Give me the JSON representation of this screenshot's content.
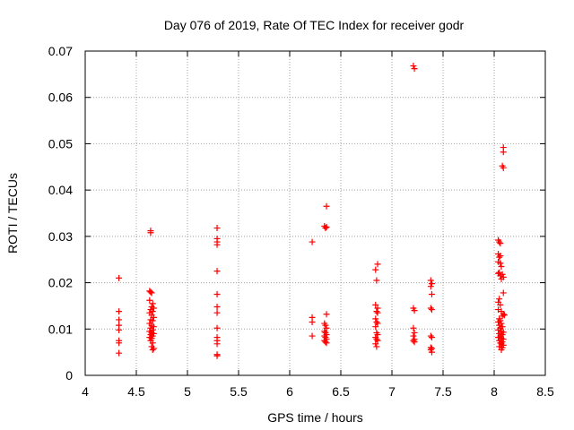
{
  "chart_data": {
    "type": "scatter",
    "title": "Day 076 of 2019, Rate Of TEC Index for receiver godr",
    "xlabel": "GPS time / hours",
    "ylabel": "ROTI / TECUs",
    "xlim": [
      4,
      8.5
    ],
    "ylim": [
      0,
      0.07
    ],
    "xticks": [
      "4",
      "4.5",
      "5",
      "5.5",
      "6",
      "6.5",
      "7",
      "7.5",
      "8",
      "8.5"
    ],
    "yticks": [
      "0",
      "0.01",
      "0.02",
      "0.03",
      "0.04",
      "0.05",
      "0.06",
      "0.07"
    ],
    "grid": true,
    "marker": "+",
    "color": "#ff0000",
    "series": [
      {
        "name": "ROTI",
        "points": [
          [
            4.33,
            0.021
          ],
          [
            4.33,
            0.0138
          ],
          [
            4.33,
            0.012
          ],
          [
            4.33,
            0.0108
          ],
          [
            4.33,
            0.0098
          ],
          [
            4.33,
            0.0075
          ],
          [
            4.33,
            0.007
          ],
          [
            4.33,
            0.0048
          ],
          [
            4.64,
            0.0312
          ],
          [
            4.64,
            0.0308
          ],
          [
            4.63,
            0.0182
          ],
          [
            4.64,
            0.018
          ],
          [
            4.65,
            0.0178
          ],
          [
            4.63,
            0.0162
          ],
          [
            4.66,
            0.0155
          ],
          [
            4.65,
            0.0148
          ],
          [
            4.67,
            0.0145
          ],
          [
            4.64,
            0.0142
          ],
          [
            4.66,
            0.0138
          ],
          [
            4.63,
            0.0135
          ],
          [
            4.65,
            0.013
          ],
          [
            4.67,
            0.0125
          ],
          [
            4.64,
            0.012
          ],
          [
            4.66,
            0.0118
          ],
          [
            4.63,
            0.0112
          ],
          [
            4.65,
            0.0108
          ],
          [
            4.67,
            0.0105
          ],
          [
            4.64,
            0.0102
          ],
          [
            4.66,
            0.0098
          ],
          [
            4.63,
            0.0095
          ],
          [
            4.65,
            0.0092
          ],
          [
            4.67,
            0.009
          ],
          [
            4.64,
            0.0088
          ],
          [
            4.66,
            0.0085
          ],
          [
            4.63,
            0.0082
          ],
          [
            4.65,
            0.008
          ],
          [
            4.64,
            0.0075
          ],
          [
            4.66,
            0.007
          ],
          [
            4.65,
            0.0062
          ],
          [
            4.67,
            0.0058
          ],
          [
            4.66,
            0.0055
          ],
          [
            5.29,
            0.0318
          ],
          [
            5.29,
            0.0295
          ],
          [
            5.29,
            0.0288
          ],
          [
            5.29,
            0.0282
          ],
          [
            5.29,
            0.0225
          ],
          [
            5.29,
            0.0175
          ],
          [
            5.29,
            0.0148
          ],
          [
            5.29,
            0.0135
          ],
          [
            5.29,
            0.0102
          ],
          [
            5.29,
            0.0082
          ],
          [
            5.29,
            0.0075
          ],
          [
            5.29,
            0.0068
          ],
          [
            5.29,
            0.0045
          ],
          [
            5.29,
            0.0042
          ],
          [
            6.22,
            0.0288
          ],
          [
            6.22,
            0.0125
          ],
          [
            6.22,
            0.0115
          ],
          [
            6.22,
            0.0085
          ],
          [
            6.36,
            0.0365
          ],
          [
            6.34,
            0.0322
          ],
          [
            6.35,
            0.0318
          ],
          [
            6.36,
            0.032
          ],
          [
            6.36,
            0.0132
          ],
          [
            6.34,
            0.0112
          ],
          [
            6.35,
            0.0108
          ],
          [
            6.36,
            0.0102
          ],
          [
            6.34,
            0.0095
          ],
          [
            6.35,
            0.0092
          ],
          [
            6.36,
            0.0088
          ],
          [
            6.34,
            0.0085
          ],
          [
            6.35,
            0.0082
          ],
          [
            6.36,
            0.0078
          ],
          [
            6.34,
            0.0075
          ],
          [
            6.35,
            0.0072
          ],
          [
            6.36,
            0.007
          ],
          [
            6.86,
            0.024
          ],
          [
            6.84,
            0.0228
          ],
          [
            6.85,
            0.0205
          ],
          [
            6.84,
            0.0152
          ],
          [
            6.86,
            0.0145
          ],
          [
            6.85,
            0.0138
          ],
          [
            6.86,
            0.0135
          ],
          [
            6.84,
            0.0122
          ],
          [
            6.85,
            0.0115
          ],
          [
            6.86,
            0.0112
          ],
          [
            6.84,
            0.0105
          ],
          [
            6.85,
            0.0092
          ],
          [
            6.86,
            0.0088
          ],
          [
            6.84,
            0.0082
          ],
          [
            6.85,
            0.0078
          ],
          [
            6.86,
            0.0075
          ],
          [
            6.84,
            0.0068
          ],
          [
            6.85,
            0.0062
          ],
          [
            7.21,
            0.0668
          ],
          [
            7.22,
            0.0662
          ],
          [
            7.21,
            0.0145
          ],
          [
            7.22,
            0.014
          ],
          [
            7.21,
            0.0102
          ],
          [
            7.22,
            0.0092
          ],
          [
            7.21,
            0.0085
          ],
          [
            7.22,
            0.0078
          ],
          [
            7.21,
            0.0075
          ],
          [
            7.22,
            0.0072
          ],
          [
            7.38,
            0.0205
          ],
          [
            7.39,
            0.0198
          ],
          [
            7.38,
            0.0192
          ],
          [
            7.39,
            0.0175
          ],
          [
            7.38,
            0.0145
          ],
          [
            7.39,
            0.0142
          ],
          [
            7.38,
            0.0085
          ],
          [
            7.39,
            0.0082
          ],
          [
            7.38,
            0.006
          ],
          [
            7.39,
            0.0058
          ],
          [
            7.38,
            0.0055
          ],
          [
            7.39,
            0.005
          ],
          [
            8.09,
            0.0492
          ],
          [
            8.09,
            0.0482
          ],
          [
            8.08,
            0.0452
          ],
          [
            8.09,
            0.0448
          ],
          [
            8.04,
            0.0292
          ],
          [
            8.05,
            0.0288
          ],
          [
            8.06,
            0.0285
          ],
          [
            8.04,
            0.0262
          ],
          [
            8.06,
            0.0258
          ],
          [
            8.05,
            0.0255
          ],
          [
            8.04,
            0.0245
          ],
          [
            8.06,
            0.0242
          ],
          [
            8.07,
            0.0235
          ],
          [
            8.05,
            0.0222
          ],
          [
            8.04,
            0.022
          ],
          [
            8.08,
            0.0218
          ],
          [
            8.06,
            0.0215
          ],
          [
            8.09,
            0.0212
          ],
          [
            8.07,
            0.0208
          ],
          [
            8.09,
            0.0178
          ],
          [
            8.05,
            0.0165
          ],
          [
            8.04,
            0.0158
          ],
          [
            8.06,
            0.0152
          ],
          [
            8.04,
            0.0142
          ],
          [
            8.07,
            0.0138
          ],
          [
            8.09,
            0.0132
          ],
          [
            8.1,
            0.013
          ],
          [
            8.08,
            0.0128
          ],
          [
            8.05,
            0.0122
          ],
          [
            8.06,
            0.0118
          ],
          [
            8.04,
            0.0115
          ],
          [
            8.07,
            0.0112
          ],
          [
            8.05,
            0.0108
          ],
          [
            8.08,
            0.0105
          ],
          [
            8.06,
            0.0102
          ],
          [
            8.04,
            0.0098
          ],
          [
            8.07,
            0.0095
          ],
          [
            8.09,
            0.0093
          ],
          [
            8.05,
            0.009
          ],
          [
            8.08,
            0.0088
          ],
          [
            8.06,
            0.0085
          ],
          [
            8.04,
            0.0082
          ],
          [
            8.07,
            0.008
          ],
          [
            8.09,
            0.0078
          ],
          [
            8.05,
            0.0075
          ],
          [
            8.08,
            0.0072
          ],
          [
            8.06,
            0.007
          ],
          [
            8.07,
            0.0068
          ],
          [
            8.09,
            0.0065
          ],
          [
            8.05,
            0.0062
          ],
          [
            8.08,
            0.006
          ],
          [
            8.07,
            0.0055
          ]
        ]
      }
    ]
  }
}
